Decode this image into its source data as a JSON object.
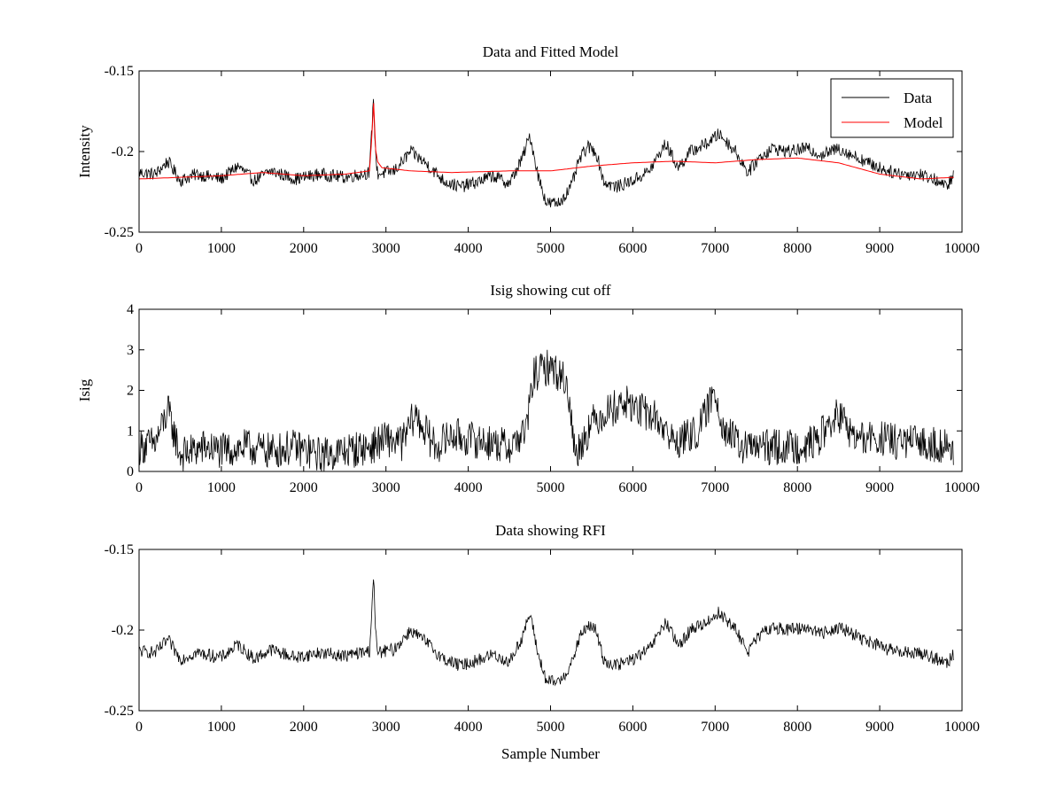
{
  "chart_data": [
    {
      "type": "line",
      "title": "Data and Fitted Model",
      "xlabel": "",
      "ylabel": "Intensity",
      "xlim": [
        0,
        10000
      ],
      "ylim": [
        -0.25,
        -0.15
      ],
      "y_reversed": true,
      "xticks": [
        0,
        1000,
        2000,
        3000,
        4000,
        5000,
        6000,
        7000,
        8000,
        9000,
        10000
      ],
      "xtick_labels": [
        "0",
        "1000",
        "2000",
        "3000",
        "4000",
        "5000",
        "6000",
        "7000",
        "8000",
        "9000",
        "10000"
      ],
      "yticks": [
        -0.15,
        -0.2,
        -0.25
      ],
      "ytick_labels": [
        "-0.15",
        "-0.2",
        "-0.25"
      ],
      "legend": {
        "position": "top-right",
        "entries": [
          "Data",
          "Model"
        ]
      },
      "series": [
        {
          "name": "Data",
          "color": "#000000",
          "noise": 0.004,
          "x": [
            0,
            200,
            350,
            500,
            700,
            1000,
            1200,
            1400,
            1600,
            1900,
            2200,
            2500,
            2800,
            2830,
            2850,
            2870,
            2900,
            3100,
            3300,
            3500,
            3700,
            3900,
            4100,
            4300,
            4500,
            4650,
            4750,
            4850,
            4950,
            5100,
            5250,
            5350,
            5450,
            5550,
            5650,
            5800,
            6000,
            6200,
            6400,
            6550,
            6700,
            6900,
            7050,
            7250,
            7400,
            7550,
            7700,
            7900,
            8100,
            8300,
            8500,
            8700,
            8900,
            9100,
            9300,
            9500,
            9700,
            9800,
            9900
          ],
          "y": [
            -0.213,
            -0.214,
            -0.206,
            -0.218,
            -0.214,
            -0.217,
            -0.209,
            -0.218,
            -0.212,
            -0.217,
            -0.214,
            -0.216,
            -0.213,
            -0.185,
            -0.165,
            -0.2,
            -0.214,
            -0.212,
            -0.2,
            -0.208,
            -0.218,
            -0.222,
            -0.219,
            -0.215,
            -0.22,
            -0.205,
            -0.19,
            -0.215,
            -0.232,
            -0.232,
            -0.222,
            -0.205,
            -0.197,
            -0.2,
            -0.219,
            -0.222,
            -0.218,
            -0.212,
            -0.195,
            -0.21,
            -0.2,
            -0.195,
            -0.189,
            -0.2,
            -0.213,
            -0.203,
            -0.198,
            -0.2,
            -0.198,
            -0.202,
            -0.198,
            -0.203,
            -0.208,
            -0.212,
            -0.214,
            -0.214,
            -0.218,
            -0.222,
            -0.215
          ]
        },
        {
          "name": "Model",
          "color": "#ff0000",
          "noise": 0,
          "x": [
            0,
            500,
            1000,
            1500,
            2000,
            2500,
            2800,
            2830,
            2850,
            2880,
            2950,
            3300,
            3800,
            4500,
            5000,
            5500,
            6000,
            6500,
            7000,
            7500,
            8000,
            8500,
            9000,
            9500,
            9900
          ],
          "y": [
            -0.217,
            -0.216,
            -0.215,
            -0.213,
            -0.215,
            -0.214,
            -0.212,
            -0.19,
            -0.17,
            -0.205,
            -0.21,
            -0.212,
            -0.213,
            -0.212,
            -0.212,
            -0.209,
            -0.207,
            -0.206,
            -0.207,
            -0.205,
            -0.204,
            -0.207,
            -0.214,
            -0.217,
            -0.216
          ]
        }
      ]
    },
    {
      "type": "line",
      "title": "Isig showing cut off",
      "xlabel": "",
      "ylabel": "Isig",
      "xlim": [
        0,
        10000
      ],
      "ylim": [
        0,
        4
      ],
      "xticks": [
        0,
        1000,
        2000,
        3000,
        4000,
        5000,
        6000,
        7000,
        8000,
        9000,
        10000
      ],
      "xtick_labels": [
        "0",
        "1000",
        "2000",
        "3000",
        "4000",
        "5000",
        "6000",
        "7000",
        "8000",
        "9000",
        "10000"
      ],
      "yticks": [
        0,
        1,
        2,
        3,
        4
      ],
      "ytick_labels": [
        "0",
        "1",
        "2",
        "3",
        "4"
      ],
      "series": [
        {
          "name": "Isig",
          "color": "#000000",
          "noise": 0.45,
          "x": [
            0,
            200,
            350,
            500,
            800,
            1000,
            1300,
            1600,
            1900,
            2200,
            2500,
            2800,
            3000,
            3200,
            3350,
            3600,
            3800,
            4000,
            4300,
            4500,
            4700,
            4800,
            5000,
            5200,
            5300,
            5500,
            5700,
            5900,
            6100,
            6300,
            6500,
            6800,
            7000,
            7100,
            7300,
            7600,
            7900,
            8200,
            8500,
            8700,
            9000,
            9300,
            9600,
            9900
          ],
          "y": [
            0.6,
            0.7,
            1.5,
            0.4,
            0.6,
            0.5,
            0.6,
            0.5,
            0.6,
            0.4,
            0.5,
            0.6,
            0.8,
            0.7,
            1.4,
            0.6,
            0.9,
            0.8,
            0.7,
            0.6,
            1.0,
            2.4,
            2.6,
            2.2,
            0.4,
            1.2,
            1.5,
            1.7,
            1.5,
            1.3,
            0.7,
            1.0,
            2.0,
            1.1,
            0.6,
            0.6,
            0.6,
            0.7,
            1.4,
            0.8,
            0.8,
            0.7,
            0.7,
            0.6
          ]
        }
      ]
    },
    {
      "type": "line",
      "title": "Data showing RFI",
      "xlabel": "Sample Number",
      "ylabel": "",
      "xlim": [
        0,
        10000
      ],
      "ylim": [
        -0.25,
        -0.15
      ],
      "y_reversed": true,
      "xticks": [
        0,
        1000,
        2000,
        3000,
        4000,
        5000,
        6000,
        7000,
        8000,
        9000,
        10000
      ],
      "xtick_labels": [
        "0",
        "1000",
        "2000",
        "3000",
        "4000",
        "5000",
        "6000",
        "7000",
        "8000",
        "9000",
        "10000"
      ],
      "yticks": [
        -0.15,
        -0.2,
        -0.25
      ],
      "ytick_labels": [
        "-0.15",
        "-0.2",
        "-0.25"
      ],
      "series": [
        {
          "name": "Data",
          "color": "#000000",
          "noise": 0.004,
          "x": [
            0,
            200,
            350,
            500,
            700,
            1000,
            1200,
            1400,
            1600,
            1900,
            2200,
            2500,
            2800,
            2830,
            2850,
            2870,
            2900,
            3100,
            3300,
            3500,
            3700,
            3900,
            4100,
            4300,
            4500,
            4650,
            4750,
            4850,
            4950,
            5100,
            5250,
            5350,
            5450,
            5550,
            5650,
            5800,
            6000,
            6200,
            6400,
            6550,
            6700,
            6900,
            7050,
            7250,
            7400,
            7550,
            7700,
            7900,
            8100,
            8300,
            8500,
            8700,
            8900,
            9100,
            9300,
            9500,
            9700,
            9800,
            9900
          ],
          "y": [
            -0.213,
            -0.214,
            -0.206,
            -0.218,
            -0.214,
            -0.217,
            -0.209,
            -0.218,
            -0.212,
            -0.217,
            -0.214,
            -0.216,
            -0.213,
            -0.185,
            -0.165,
            -0.2,
            -0.214,
            -0.212,
            -0.2,
            -0.208,
            -0.218,
            -0.222,
            -0.219,
            -0.215,
            -0.22,
            -0.205,
            -0.19,
            -0.215,
            -0.232,
            -0.232,
            -0.222,
            -0.205,
            -0.197,
            -0.2,
            -0.219,
            -0.222,
            -0.218,
            -0.212,
            -0.195,
            -0.21,
            -0.2,
            -0.195,
            -0.189,
            -0.2,
            -0.213,
            -0.203,
            -0.198,
            -0.2,
            -0.198,
            -0.202,
            -0.198,
            -0.203,
            -0.208,
            -0.212,
            -0.214,
            -0.214,
            -0.218,
            -0.222,
            -0.215
          ]
        }
      ]
    }
  ]
}
